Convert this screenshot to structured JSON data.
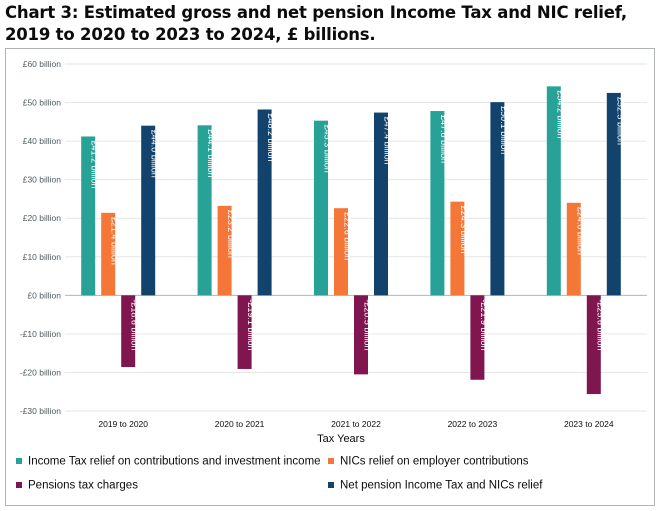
{
  "title": "Chart 3: Estimated gross and net pension Income Tax and NIC relief, 2019 to 2020 to 2023 to 2024, £ billions.",
  "chart_data": {
    "type": "bar",
    "title": "Chart 3: Estimated gross and net pension Income Tax and NIC relief, 2019 to 2020 to 2023 to 2024, £ billions.",
    "xlabel": "Tax Years",
    "ylabel": "",
    "categories": [
      "2019 to 2020",
      "2020 to 2021",
      "2021 to 2022",
      "2022 to 2023",
      "2023 to 2024"
    ],
    "ylim": [
      -30,
      60
    ],
    "yticks": [
      60,
      50,
      40,
      30,
      20,
      10,
      0,
      -10,
      -20,
      -30
    ],
    "ytick_labels": [
      "£60 billion",
      "£50 billion",
      "£40 billion",
      "£30 billion",
      "£20 billion",
      "£10 billion",
      "£0 billion",
      "-£10 billion",
      "-£20 billion",
      "-£30 billion"
    ],
    "grid": true,
    "legend_position": "bottom",
    "series": [
      {
        "name": "Income Tax relief on contributions and investment income",
        "color": "#28a197",
        "values": [
          41.2,
          44.1,
          45.3,
          47.8,
          54.2
        ],
        "labels": [
          "£41.2 billion",
          "£44.1 billion",
          "£45.3 billion",
          "£47.8 billion",
          "£54.2 billion"
        ]
      },
      {
        "name": "NICs relief on employer contributions",
        "color": "#f47738",
        "values": [
          21.4,
          23.2,
          22.6,
          24.3,
          24.0
        ],
        "labels": [
          "£21.4 billion",
          "£23.2 billion",
          "£22.6 billion",
          "£24.3 billion",
          "£24.0 billion"
        ]
      },
      {
        "name": "Pensions tax charges",
        "color": "#801650",
        "values": [
          -18.6,
          -19.1,
          -20.5,
          -21.9,
          -25.6
        ],
        "labels": [
          "-£18.6 billion",
          "-£19.1 billion",
          "-£20.5 billion",
          "-£21.9 billion",
          "-£25.6 billion"
        ]
      },
      {
        "name": "Net pension Income Tax and NICs relief",
        "color": "#12436d",
        "values": [
          44.0,
          48.2,
          47.4,
          50.1,
          52.5
        ],
        "labels": [
          "£44.0 billion",
          "£48.2 billion",
          "£47.4 billion",
          "£50.1 billion",
          "£52.5 billion"
        ]
      }
    ]
  }
}
